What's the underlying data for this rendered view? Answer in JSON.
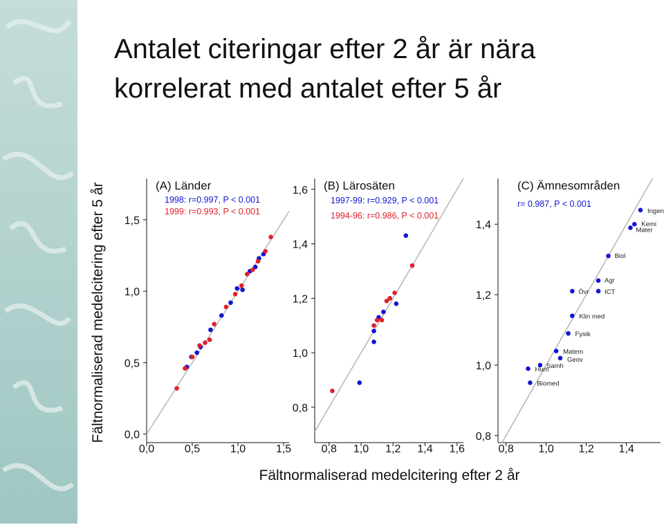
{
  "title": [
    "Antalet citeringar efter 2 år är nära",
    "korrelerat med antalet efter 5 år"
  ],
  "y_axis_label": "Fältnormaliserad medelcitering efter 5 år",
  "x_axis_label": "Fältnormaliserad medelcitering efter 2 år",
  "chart_data": [
    {
      "type": "scatter",
      "title": "(A) Länder",
      "xlim": [
        0,
        1.56
      ],
      "ylim": [
        -0.06,
        1.79
      ],
      "xticks": [
        {
          "value": 0,
          "label": "0,0"
        },
        {
          "value": 0.5,
          "label": "0,5"
        },
        {
          "value": 1,
          "label": "1,0"
        },
        {
          "value": 1.5,
          "label": "1,5"
        }
      ],
      "yticks": [
        {
          "value": 0,
          "label": "0,0"
        },
        {
          "value": 0.5,
          "label": "0,5"
        },
        {
          "value": 1,
          "label": "1,0"
        },
        {
          "value": 1.5,
          "label": "1,5"
        }
      ],
      "reference_line": true,
      "series": [
        {
          "name": "1998: r=0.997, P < 0.001",
          "color": "#1414d2",
          "x": [
            0.44,
            0.49,
            0.55,
            0.59,
            0.7,
            0.82,
            0.92,
            0.99,
            1.05,
            1.13,
            1.19,
            1.23,
            1.28
          ],
          "values": [
            0.47,
            0.54,
            0.57,
            0.61,
            0.73,
            0.83,
            0.92,
            1.02,
            1.01,
            1.14,
            1.17,
            1.23,
            1.26
          ]
        },
        {
          "name": "1999: r=0.993, P < 0.001",
          "color": "#e0202a",
          "x": [
            0.33,
            0.42,
            0.5,
            0.58,
            0.64,
            0.69,
            0.74,
            0.87,
            0.97,
            1.04,
            1.1,
            1.16,
            1.22,
            1.3,
            1.36
          ],
          "values": [
            0.32,
            0.46,
            0.54,
            0.62,
            0.64,
            0.66,
            0.77,
            0.89,
            0.98,
            1.04,
            1.12,
            1.15,
            1.21,
            1.28,
            1.38
          ]
        }
      ]
    },
    {
      "type": "scatter",
      "title": "(B) Lärosäten",
      "xlim": [
        0.71,
        1.64
      ],
      "ylim": [
        0.67,
        1.64
      ],
      "xticks": [
        {
          "value": 0.8,
          "label": "0,8"
        },
        {
          "value": 1,
          "label": "1,0"
        },
        {
          "value": 1.2,
          "label": "1,2"
        },
        {
          "value": 1.4,
          "label": "1,4"
        },
        {
          "value": 1.6,
          "label": "1,6"
        }
      ],
      "yticks": [
        {
          "value": 0.8,
          "label": "0,8"
        },
        {
          "value": 1,
          "label": "1,0"
        },
        {
          "value": 1.2,
          "label": "1,2"
        },
        {
          "value": 1.4,
          "label": "1,4"
        },
        {
          "value": 1.6,
          "label": "1,6"
        }
      ],
      "reference_line": true,
      "series": [
        {
          "name": "1997-99: r=0.929, P < 0.001",
          "color": "#1414d2",
          "x": [
            1.28,
            0.99,
            1.08,
            1.08,
            1.11,
            1.14,
            1.18,
            1.22
          ],
          "values": [
            1.43,
            0.89,
            1.04,
            1.08,
            1.13,
            1.15,
            1.2,
            1.18
          ]
        },
        {
          "name": "1994-96: r=0.986, P < 0.001",
          "color": "#e0202a",
          "x": [
            0.82,
            1.32,
            1.08,
            1.1,
            1.13,
            1.16,
            1.18,
            1.21
          ],
          "values": [
            0.86,
            1.32,
            1.1,
            1.12,
            1.12,
            1.19,
            1.2,
            1.22
          ]
        }
      ]
    },
    {
      "type": "scatter",
      "title": "(C) Ämnesområden",
      "xlim": [
        0.76,
        1.57
      ],
      "ylim": [
        0.78,
        1.53
      ],
      "xticks": [
        {
          "value": 0.8,
          "label": "0,8"
        },
        {
          "value": 1,
          "label": "1,0"
        },
        {
          "value": 1.2,
          "label": "1,2"
        },
        {
          "value": 1.4,
          "label": "1,4"
        }
      ],
      "yticks": [
        {
          "value": 0.8,
          "label": "0,8"
        },
        {
          "value": 1,
          "label": "1,0"
        },
        {
          "value": 1.2,
          "label": "1,2"
        },
        {
          "value": 1.4,
          "label": "1,4"
        }
      ],
      "reference_line": true,
      "series": [
        {
          "name": "r= 0.987, P < 0.001",
          "color": "#1414d2",
          "labels": [
            "Ingenj",
            "Kemi",
            "Mater",
            "Biol",
            "Agr",
            "ICT",
            "Övr",
            "Klin med",
            "Fysik",
            "Matem",
            "Geov",
            "Samh",
            "Hum",
            "Biomed"
          ],
          "x": [
            1.47,
            1.44,
            1.42,
            1.31,
            1.26,
            1.26,
            1.13,
            1.13,
            1.11,
            1.05,
            1.07,
            0.97,
            0.91,
            0.92
          ],
          "values": [
            1.44,
            1.4,
            1.39,
            1.31,
            1.24,
            1.21,
            1.21,
            1.14,
            1.09,
            1.04,
            1.02,
            1.0,
            0.99,
            0.95
          ]
        }
      ]
    }
  ]
}
